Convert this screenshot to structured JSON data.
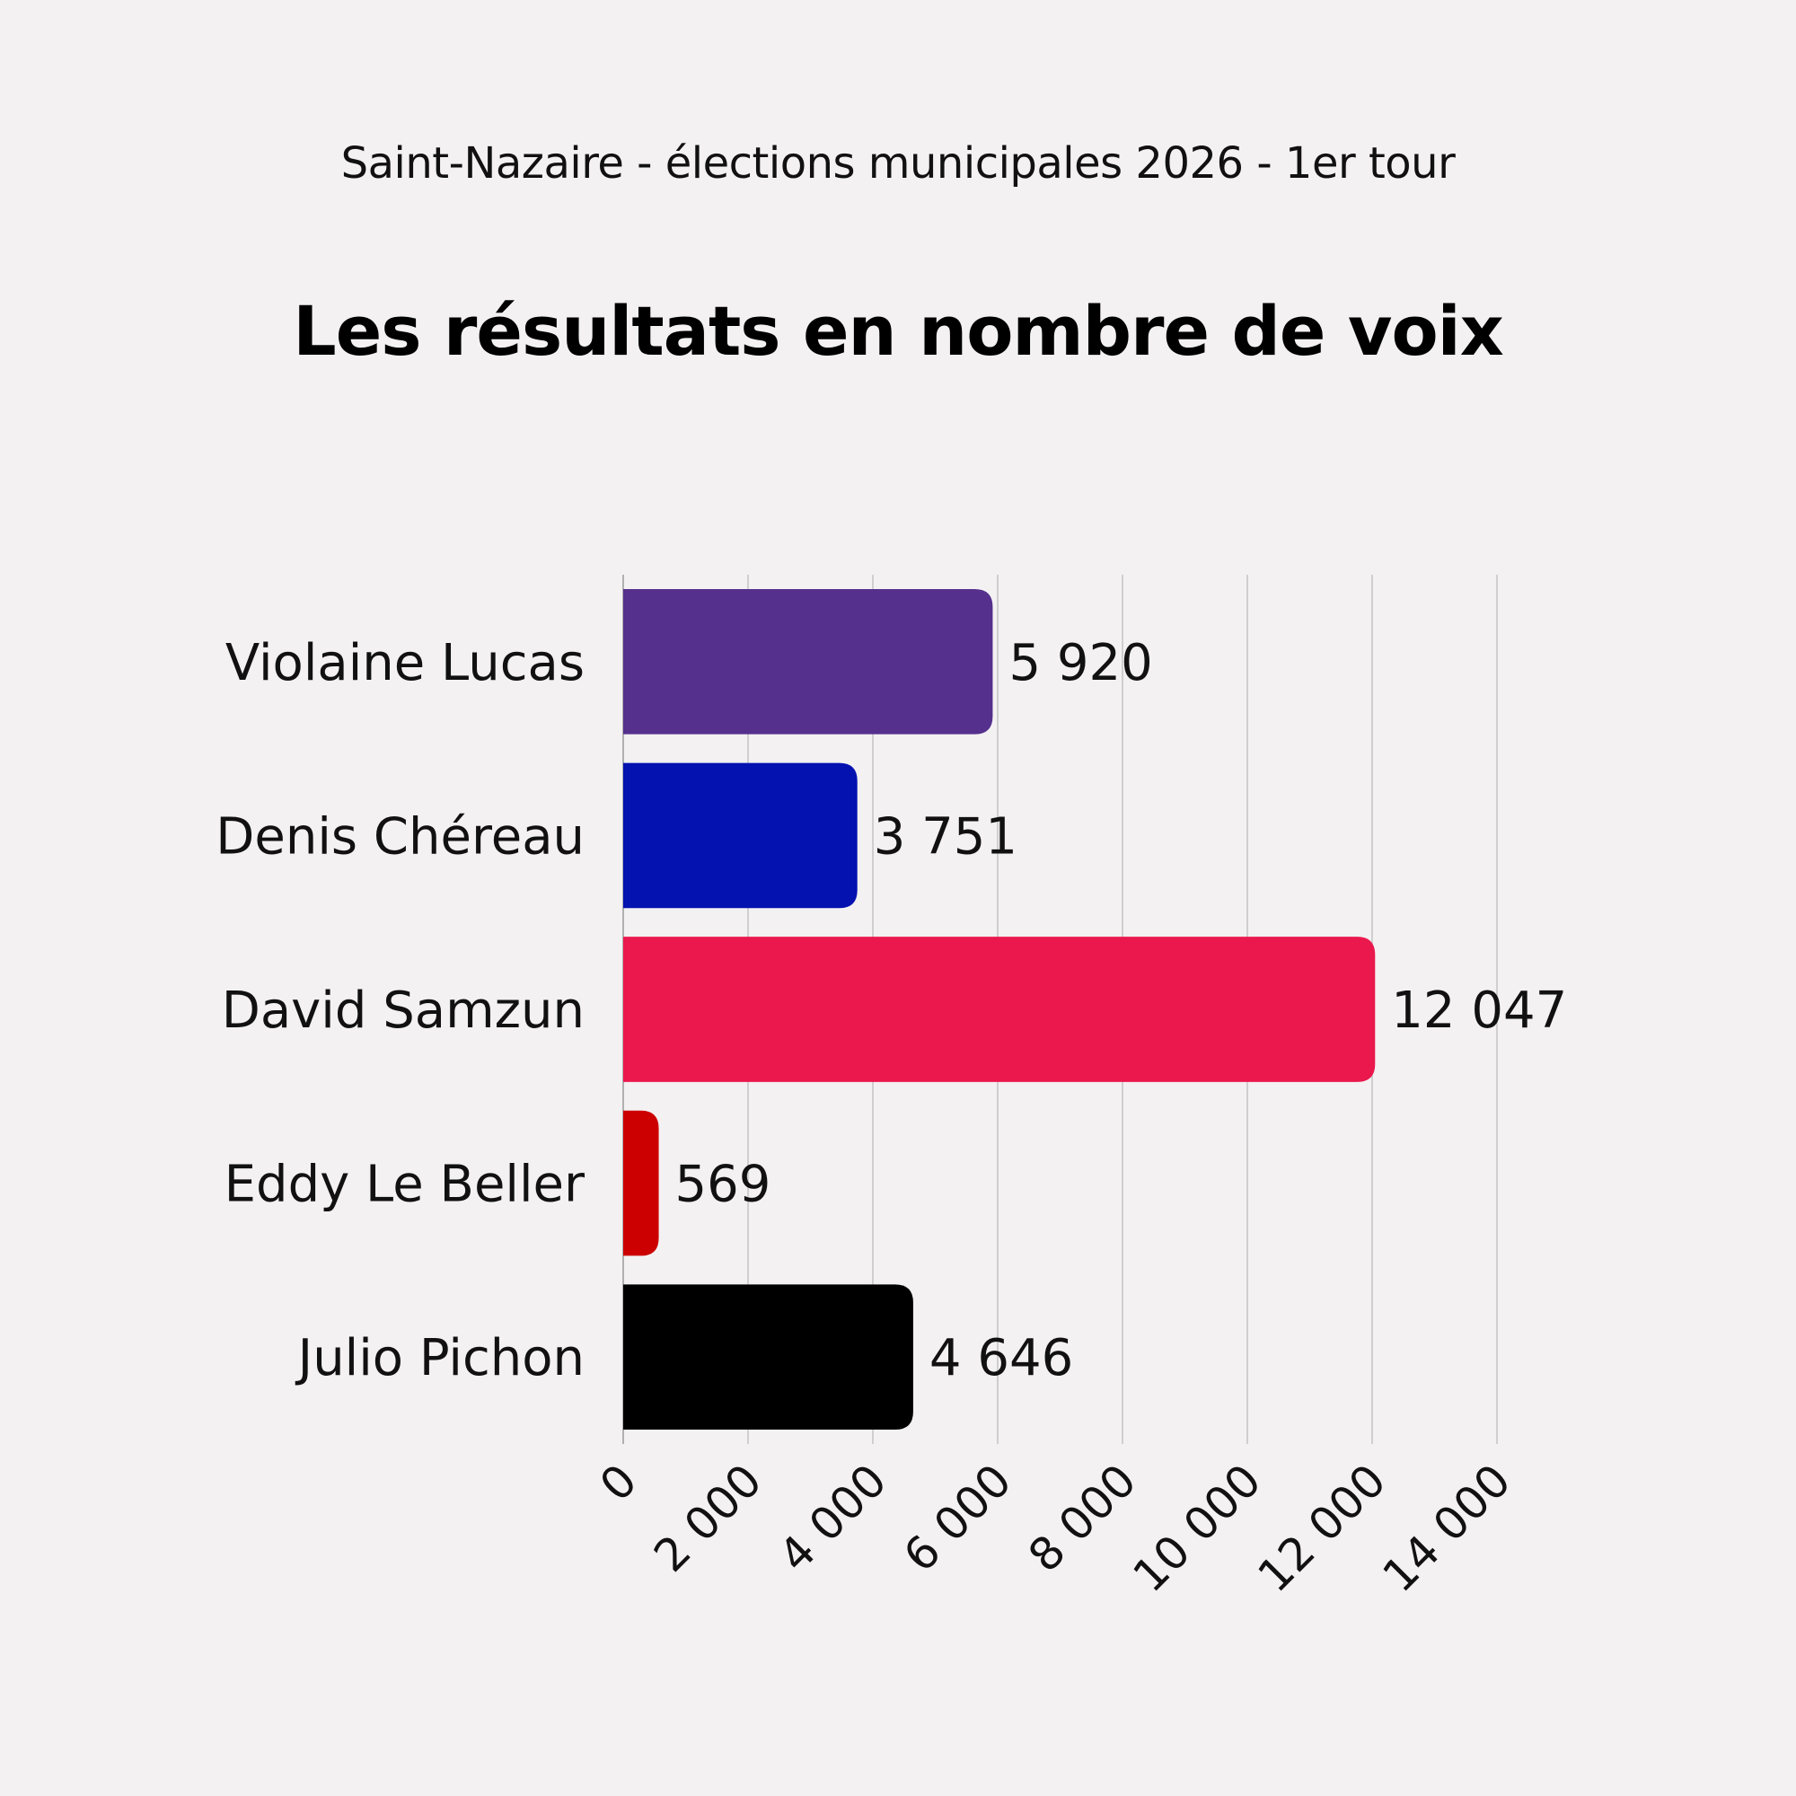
{
  "subtitle": "Saint-Nazaire - élections municipales 2026 - 1er tour",
  "title": "Les résultats en nombre de voix",
  "chart_data": {
    "type": "bar",
    "orientation": "horizontal",
    "title": "Les résultats en nombre de voix",
    "subtitle": "Saint-Nazaire - élections municipales 2026 - 1er tour",
    "xlabel": "",
    "ylabel": "",
    "xlim": [
      0,
      14000
    ],
    "grid": true,
    "categories": [
      "Violaine Lucas",
      "Denis Chéreau",
      "David Samzun",
      "Eddy Le Beller",
      "Julio Pichon"
    ],
    "values": [
      5920,
      3751,
      12047,
      569,
      4646
    ],
    "value_labels": [
      "5 920",
      "3 751",
      "12 047",
      "569",
      "4 646"
    ],
    "colors": [
      "#55308d",
      "#0412b0",
      "#ea184d",
      "#cc0000",
      "#000000"
    ],
    "ticks": [
      0,
      2000,
      4000,
      6000,
      8000,
      10000,
      12000,
      14000
    ],
    "tick_labels": [
      "0",
      "2 000",
      "4 000",
      "6 000",
      "8 000",
      "10 000",
      "12 000",
      "14 000"
    ]
  }
}
